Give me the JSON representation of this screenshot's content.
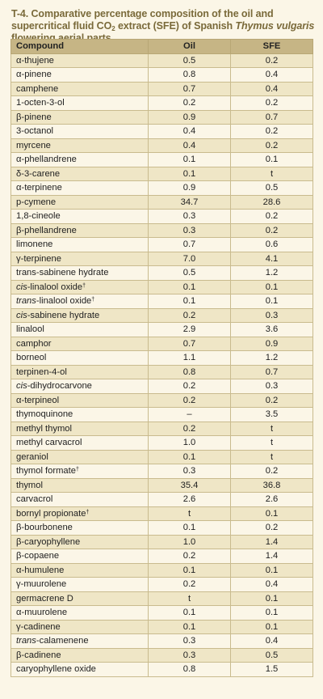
{
  "title": {
    "part1": "T-4. Comparative percentage composition of the oil and supercritical fluid CO",
    "sub": "2",
    "part2": " extract (SFE) of Spanish ",
    "species": "Thymus vulgaris",
    "part3": " flowering aerial parts"
  },
  "table": {
    "headers": [
      "Compound",
      "Oil",
      "SFE"
    ],
    "rows": [
      {
        "pre": "α-thujene",
        "it": "",
        "rest": "",
        "sup": "",
        "oil": "0.5",
        "sfe": "0.2"
      },
      {
        "pre": "α-pinene",
        "it": "",
        "rest": "",
        "sup": "",
        "oil": "0.8",
        "sfe": "0.4"
      },
      {
        "pre": "camphene",
        "it": "",
        "rest": "",
        "sup": "",
        "oil": "0.7",
        "sfe": "0.4"
      },
      {
        "pre": "1-octen-3-ol",
        "it": "",
        "rest": "",
        "sup": "",
        "oil": "0.2",
        "sfe": "0.2"
      },
      {
        "pre": "β-pinene",
        "it": "",
        "rest": "",
        "sup": "",
        "oil": "0.9",
        "sfe": "0.7"
      },
      {
        "pre": "3-octanol",
        "it": "",
        "rest": "",
        "sup": "",
        "oil": "0.4",
        "sfe": "0.2"
      },
      {
        "pre": "myrcene",
        "it": "",
        "rest": "",
        "sup": "",
        "oil": "0.4",
        "sfe": "0.2"
      },
      {
        "pre": "α-phellandrene",
        "it": "",
        "rest": "",
        "sup": "",
        "oil": "0.1",
        "sfe": "0.1"
      },
      {
        "pre": "δ-3-carene",
        "it": "",
        "rest": "",
        "sup": "",
        "oil": "0.1",
        "sfe": "t"
      },
      {
        "pre": "α-terpinene",
        "it": "",
        "rest": "",
        "sup": "",
        "oil": "0.9",
        "sfe": "0.5"
      },
      {
        "pre": "p-cymene",
        "it": "",
        "rest": "",
        "sup": "",
        "oil": "34.7",
        "sfe": "28.6"
      },
      {
        "pre": "1,8-cineole",
        "it": "",
        "rest": "",
        "sup": "",
        "oil": "0.3",
        "sfe": "0.2"
      },
      {
        "pre": "β-phellandrene",
        "it": "",
        "rest": "",
        "sup": "",
        "oil": "0.3",
        "sfe": "0.2"
      },
      {
        "pre": "limonene",
        "it": "",
        "rest": "",
        "sup": "",
        "oil": "0.7",
        "sfe": "0.6"
      },
      {
        "pre": "γ-terpinene",
        "it": "",
        "rest": "",
        "sup": "",
        "oil": "7.0",
        "sfe": "4.1"
      },
      {
        "pre": "trans-sabinene hydrate",
        "it": "",
        "rest": "",
        "sup": "",
        "oil": "0.5",
        "sfe": "1.2"
      },
      {
        "pre": "",
        "it": "cis",
        "rest": "-linalool oxide",
        "sup": "†",
        "oil": "0.1",
        "sfe": "0.1"
      },
      {
        "pre": "",
        "it": "trans",
        "rest": "-linalool oxide",
        "sup": "†",
        "oil": "0.1",
        "sfe": "0.1"
      },
      {
        "pre": "",
        "it": "cis",
        "rest": "-sabinene hydrate",
        "sup": "",
        "oil": "0.2",
        "sfe": "0.3"
      },
      {
        "pre": "linalool",
        "it": "",
        "rest": "",
        "sup": "",
        "oil": "2.9",
        "sfe": "3.6"
      },
      {
        "pre": "camphor",
        "it": "",
        "rest": "",
        "sup": "",
        "oil": "0.7",
        "sfe": "0.9"
      },
      {
        "pre": "borneol",
        "it": "",
        "rest": "",
        "sup": "",
        "oil": "1.1",
        "sfe": "1.2"
      },
      {
        "pre": "terpinen-4-ol",
        "it": "",
        "rest": "",
        "sup": "",
        "oil": "0.8",
        "sfe": "0.7"
      },
      {
        "pre": "",
        "it": "cis",
        "rest": "-dihydrocarvone",
        "sup": "",
        "oil": "0.2",
        "sfe": "0.3"
      },
      {
        "pre": "α-terpineol",
        "it": "",
        "rest": "",
        "sup": "",
        "oil": "0.2",
        "sfe": "0.2"
      },
      {
        "pre": "thymoquinone",
        "it": "",
        "rest": "",
        "sup": "",
        "oil": "–",
        "sfe": "3.5"
      },
      {
        "pre": "methyl thymol",
        "it": "",
        "rest": "",
        "sup": "",
        "oil": "0.2",
        "sfe": "t"
      },
      {
        "pre": "methyl carvacrol",
        "it": "",
        "rest": "",
        "sup": "",
        "oil": "1.0",
        "sfe": "t"
      },
      {
        "pre": "geraniol",
        "it": "",
        "rest": "",
        "sup": "",
        "oil": "0.1",
        "sfe": "t"
      },
      {
        "pre": "thymol formate",
        "it": "",
        "rest": "",
        "sup": "†",
        "oil": "0.3",
        "sfe": "0.2"
      },
      {
        "pre": "thymol",
        "it": "",
        "rest": "",
        "sup": "",
        "oil": "35.4",
        "sfe": "36.8"
      },
      {
        "pre": "carvacrol",
        "it": "",
        "rest": "",
        "sup": "",
        "oil": "2.6",
        "sfe": "2.6"
      },
      {
        "pre": "bornyl propionate",
        "it": "",
        "rest": "",
        "sup": "†",
        "oil": "t",
        "sfe": "0.1"
      },
      {
        "pre": "β-bourbonene",
        "it": "",
        "rest": "",
        "sup": "",
        "oil": "0.1",
        "sfe": "0.2"
      },
      {
        "pre": "β-caryophyllene",
        "it": "",
        "rest": "",
        "sup": "",
        "oil": "1.0",
        "sfe": "1.4"
      },
      {
        "pre": "β-copaene",
        "it": "",
        "rest": "",
        "sup": "",
        "oil": "0.2",
        "sfe": "1.4"
      },
      {
        "pre": "α-humulene",
        "it": "",
        "rest": "",
        "sup": "",
        "oil": "0.1",
        "sfe": "0.1"
      },
      {
        "pre": "γ-muurolene",
        "it": "",
        "rest": "",
        "sup": "",
        "oil": "0.2",
        "sfe": "0.4"
      },
      {
        "pre": "germacrene D",
        "it": "",
        "rest": "",
        "sup": "",
        "oil": "t",
        "sfe": "0.1"
      },
      {
        "pre": "α-muurolene",
        "it": "",
        "rest": "",
        "sup": "",
        "oil": "0.1",
        "sfe": "0.1"
      },
      {
        "pre": "γ-cadinene",
        "it": "",
        "rest": "",
        "sup": "",
        "oil": "0.1",
        "sfe": "0.1"
      },
      {
        "pre": "",
        "it": "trans",
        "rest": "-calamenene",
        "sup": "",
        "oil": "0.3",
        "sfe": "0.4"
      },
      {
        "pre": "β-cadinene",
        "it": "",
        "rest": "",
        "sup": "",
        "oil": "0.3",
        "sfe": "0.5"
      },
      {
        "pre": "caryophyllene oxide",
        "it": "",
        "rest": "",
        "sup": "",
        "oil": "0.8",
        "sfe": "1.5"
      }
    ]
  }
}
